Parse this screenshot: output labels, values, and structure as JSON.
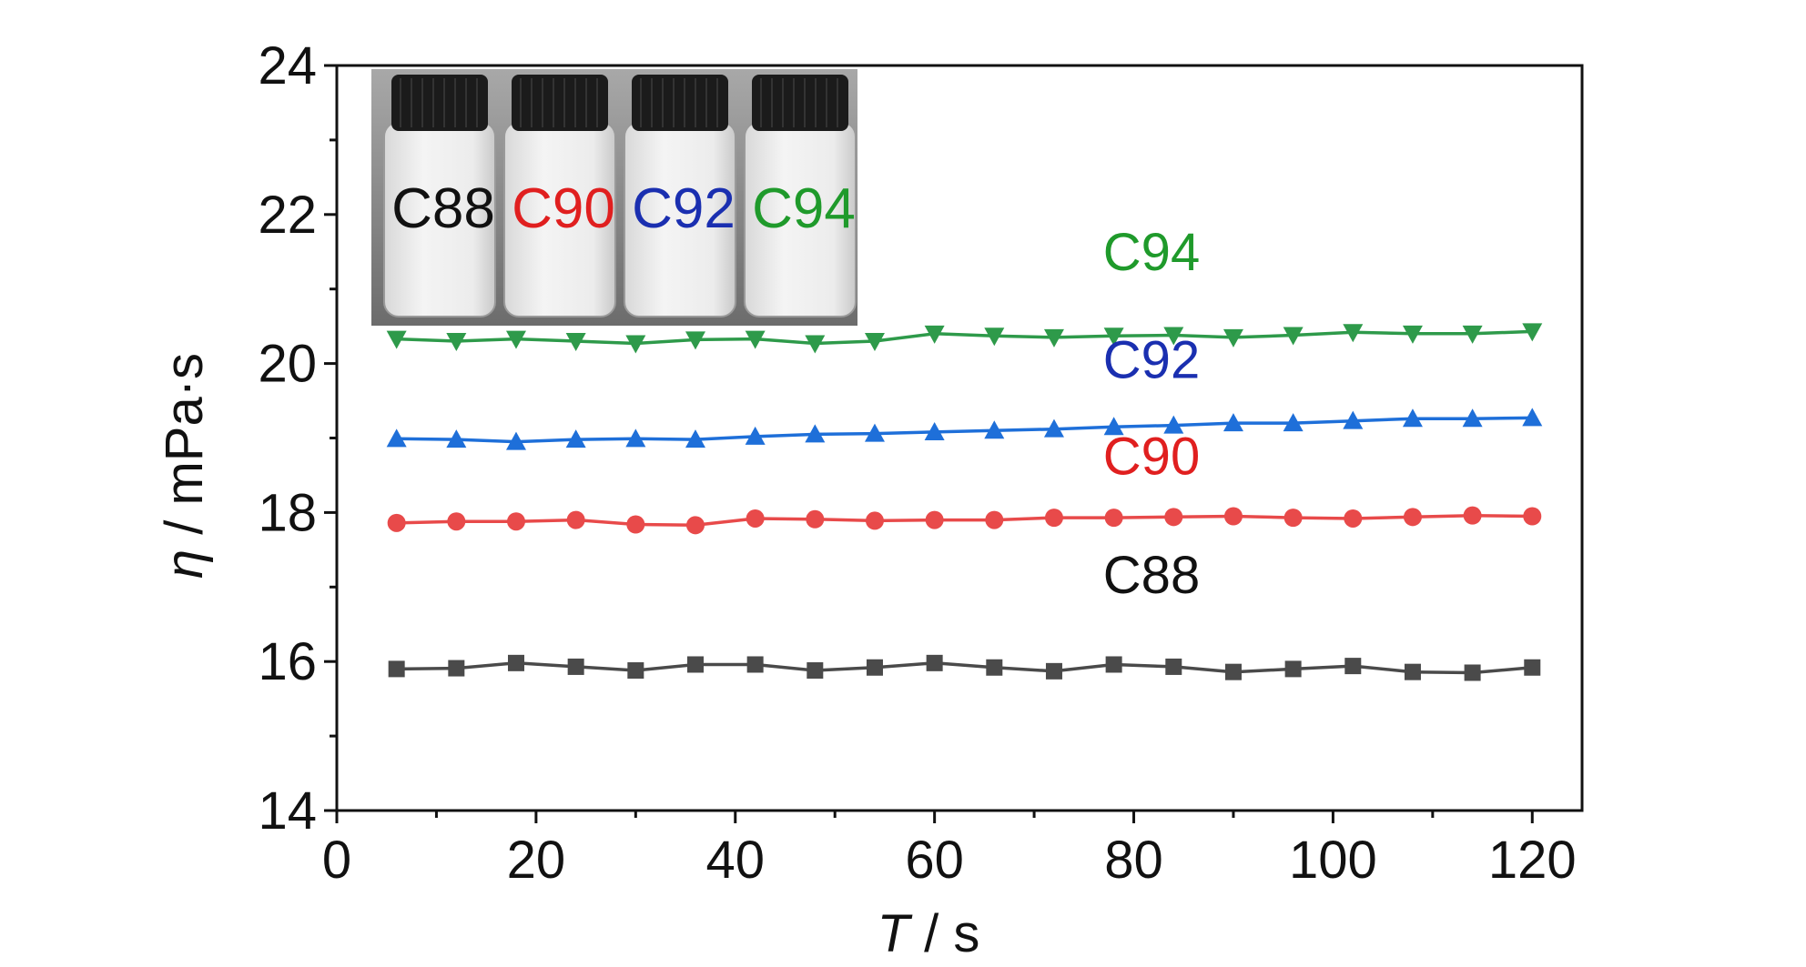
{
  "chart_data": {
    "type": "line",
    "xlabel": {
      "var": "T",
      "unit": " / s"
    },
    "ylabel": {
      "var": "η",
      "unit": " / mPa·s"
    },
    "xlim": [
      0,
      125
    ],
    "ylim": [
      14,
      24
    ],
    "x_ticks": [
      0,
      20,
      40,
      60,
      80,
      100,
      120
    ],
    "y_ticks": [
      14,
      16,
      18,
      20,
      22,
      24
    ],
    "grid": false,
    "legend": "none (series labels placed inline above each curve)",
    "x": [
      6,
      12,
      18,
      24,
      30,
      36,
      42,
      48,
      54,
      60,
      66,
      72,
      78,
      84,
      90,
      96,
      102,
      108,
      114,
      120
    ],
    "series": [
      {
        "name": "C94",
        "color": "#2e9a4a",
        "label_color": "#1f9a2b",
        "marker": "triangle-down",
        "values": [
          20.33,
          20.3,
          20.33,
          20.3,
          20.27,
          20.32,
          20.33,
          20.27,
          20.3,
          20.4,
          20.37,
          20.35,
          20.37,
          20.38,
          20.35,
          20.38,
          20.42,
          20.4,
          20.4,
          20.43
        ]
      },
      {
        "name": "C92",
        "color": "#1e6fd9",
        "label_color": "#1a2fb0",
        "marker": "triangle-up",
        "values": [
          18.99,
          18.98,
          18.95,
          18.98,
          18.99,
          18.98,
          19.02,
          19.05,
          19.06,
          19.08,
          19.1,
          19.12,
          19.15,
          19.17,
          19.2,
          19.2,
          19.23,
          19.26,
          19.26,
          19.27
        ]
      },
      {
        "name": "C90",
        "color": "#e84a4a",
        "label_color": "#e01f1f",
        "marker": "circle",
        "values": [
          17.86,
          17.88,
          17.88,
          17.9,
          17.84,
          17.83,
          17.92,
          17.91,
          17.89,
          17.9,
          17.9,
          17.93,
          17.93,
          17.94,
          17.95,
          17.93,
          17.92,
          17.94,
          17.96,
          17.95
        ]
      },
      {
        "name": "C88",
        "color": "#4a4a4a",
        "label_color": "#111111",
        "marker": "square",
        "values": [
          15.9,
          15.91,
          15.98,
          15.93,
          15.88,
          15.96,
          15.96,
          15.88,
          15.92,
          15.98,
          15.92,
          15.87,
          15.96,
          15.93,
          15.86,
          15.9,
          15.94,
          15.86,
          15.85,
          15.92
        ]
      }
    ],
    "inset": {
      "kind": "photo of four sample vials (top-left)",
      "labels": [
        {
          "text": "C88",
          "color": "#111111"
        },
        {
          "text": "C90",
          "color": "#e01f1f"
        },
        {
          "text": "C92",
          "color": "#1a2fb0"
        },
        {
          "text": "C94",
          "color": "#1f9a2b"
        }
      ]
    }
  }
}
